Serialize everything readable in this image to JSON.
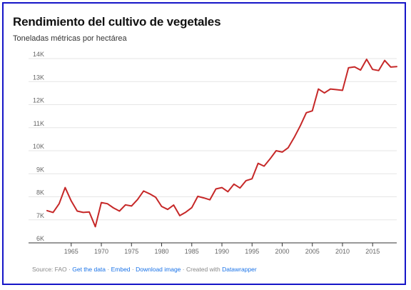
{
  "title": "Rendimiento del cultivo de vegetales",
  "subtitle": "Toneladas métricas por hectárea",
  "footer": {
    "source": "Source: FAO",
    "sep": " · ",
    "get_data": "Get the data",
    "embed": "Embed",
    "download": "Download image",
    "created_prefix": "Created with ",
    "datawrapper": "Datawrapper"
  },
  "colors": {
    "line": "#c62828",
    "grid": "#e6e6e6",
    "axis": "#333333",
    "tick_label": "#666666",
    "link": "#1a73e8"
  },
  "chart_data": {
    "type": "line",
    "title": "Rendimiento del cultivo de vegetales",
    "subtitle": "Toneladas métricas por hectárea",
    "xlabel": "",
    "ylabel": "",
    "xlim": [
      1961,
      2019
    ],
    "ylim": [
      6000,
      14000
    ],
    "x_ticks": [
      1965,
      1970,
      1975,
      1980,
      1985,
      1990,
      1995,
      2000,
      2005,
      2010,
      2015
    ],
    "y_ticks": [
      6000,
      7000,
      8000,
      9000,
      10000,
      11000,
      12000,
      13000,
      14000
    ],
    "y_tick_labels": [
      "6K",
      "7K",
      "8K",
      "9K",
      "10K",
      "11K",
      "12K",
      "13K",
      "14K"
    ],
    "grid": true,
    "legend": "none",
    "x": [
      1961,
      1962,
      1963,
      1964,
      1965,
      1966,
      1967,
      1968,
      1969,
      1970,
      1971,
      1972,
      1973,
      1974,
      1975,
      1976,
      1977,
      1978,
      1979,
      1980,
      1981,
      1982,
      1983,
      1984,
      1985,
      1986,
      1987,
      1988,
      1989,
      1990,
      1991,
      1992,
      1993,
      1994,
      1995,
      1996,
      1997,
      1998,
      1999,
      2000,
      2001,
      2002,
      2003,
      2004,
      2005,
      2006,
      2007,
      2008,
      2009,
      2010,
      2011,
      2012,
      2013,
      2014,
      2015,
      2016,
      2017,
      2018,
      2019
    ],
    "values": [
      7400,
      7320,
      7700,
      8400,
      7820,
      7380,
      7320,
      7340,
      6700,
      7750,
      7700,
      7520,
      7380,
      7650,
      7600,
      7880,
      8250,
      8130,
      7980,
      7580,
      7450,
      7640,
      7180,
      7330,
      7530,
      8020,
      7950,
      7870,
      8340,
      8400,
      8220,
      8550,
      8380,
      8700,
      8780,
      9450,
      9330,
      9650,
      10000,
      9940,
      10130,
      10580,
      11080,
      11650,
      11730,
      12680,
      12510,
      12680,
      12650,
      12620,
      13600,
      13640,
      13500,
      13970,
      13530,
      13480,
      13920,
      13630,
      13650
    ]
  }
}
